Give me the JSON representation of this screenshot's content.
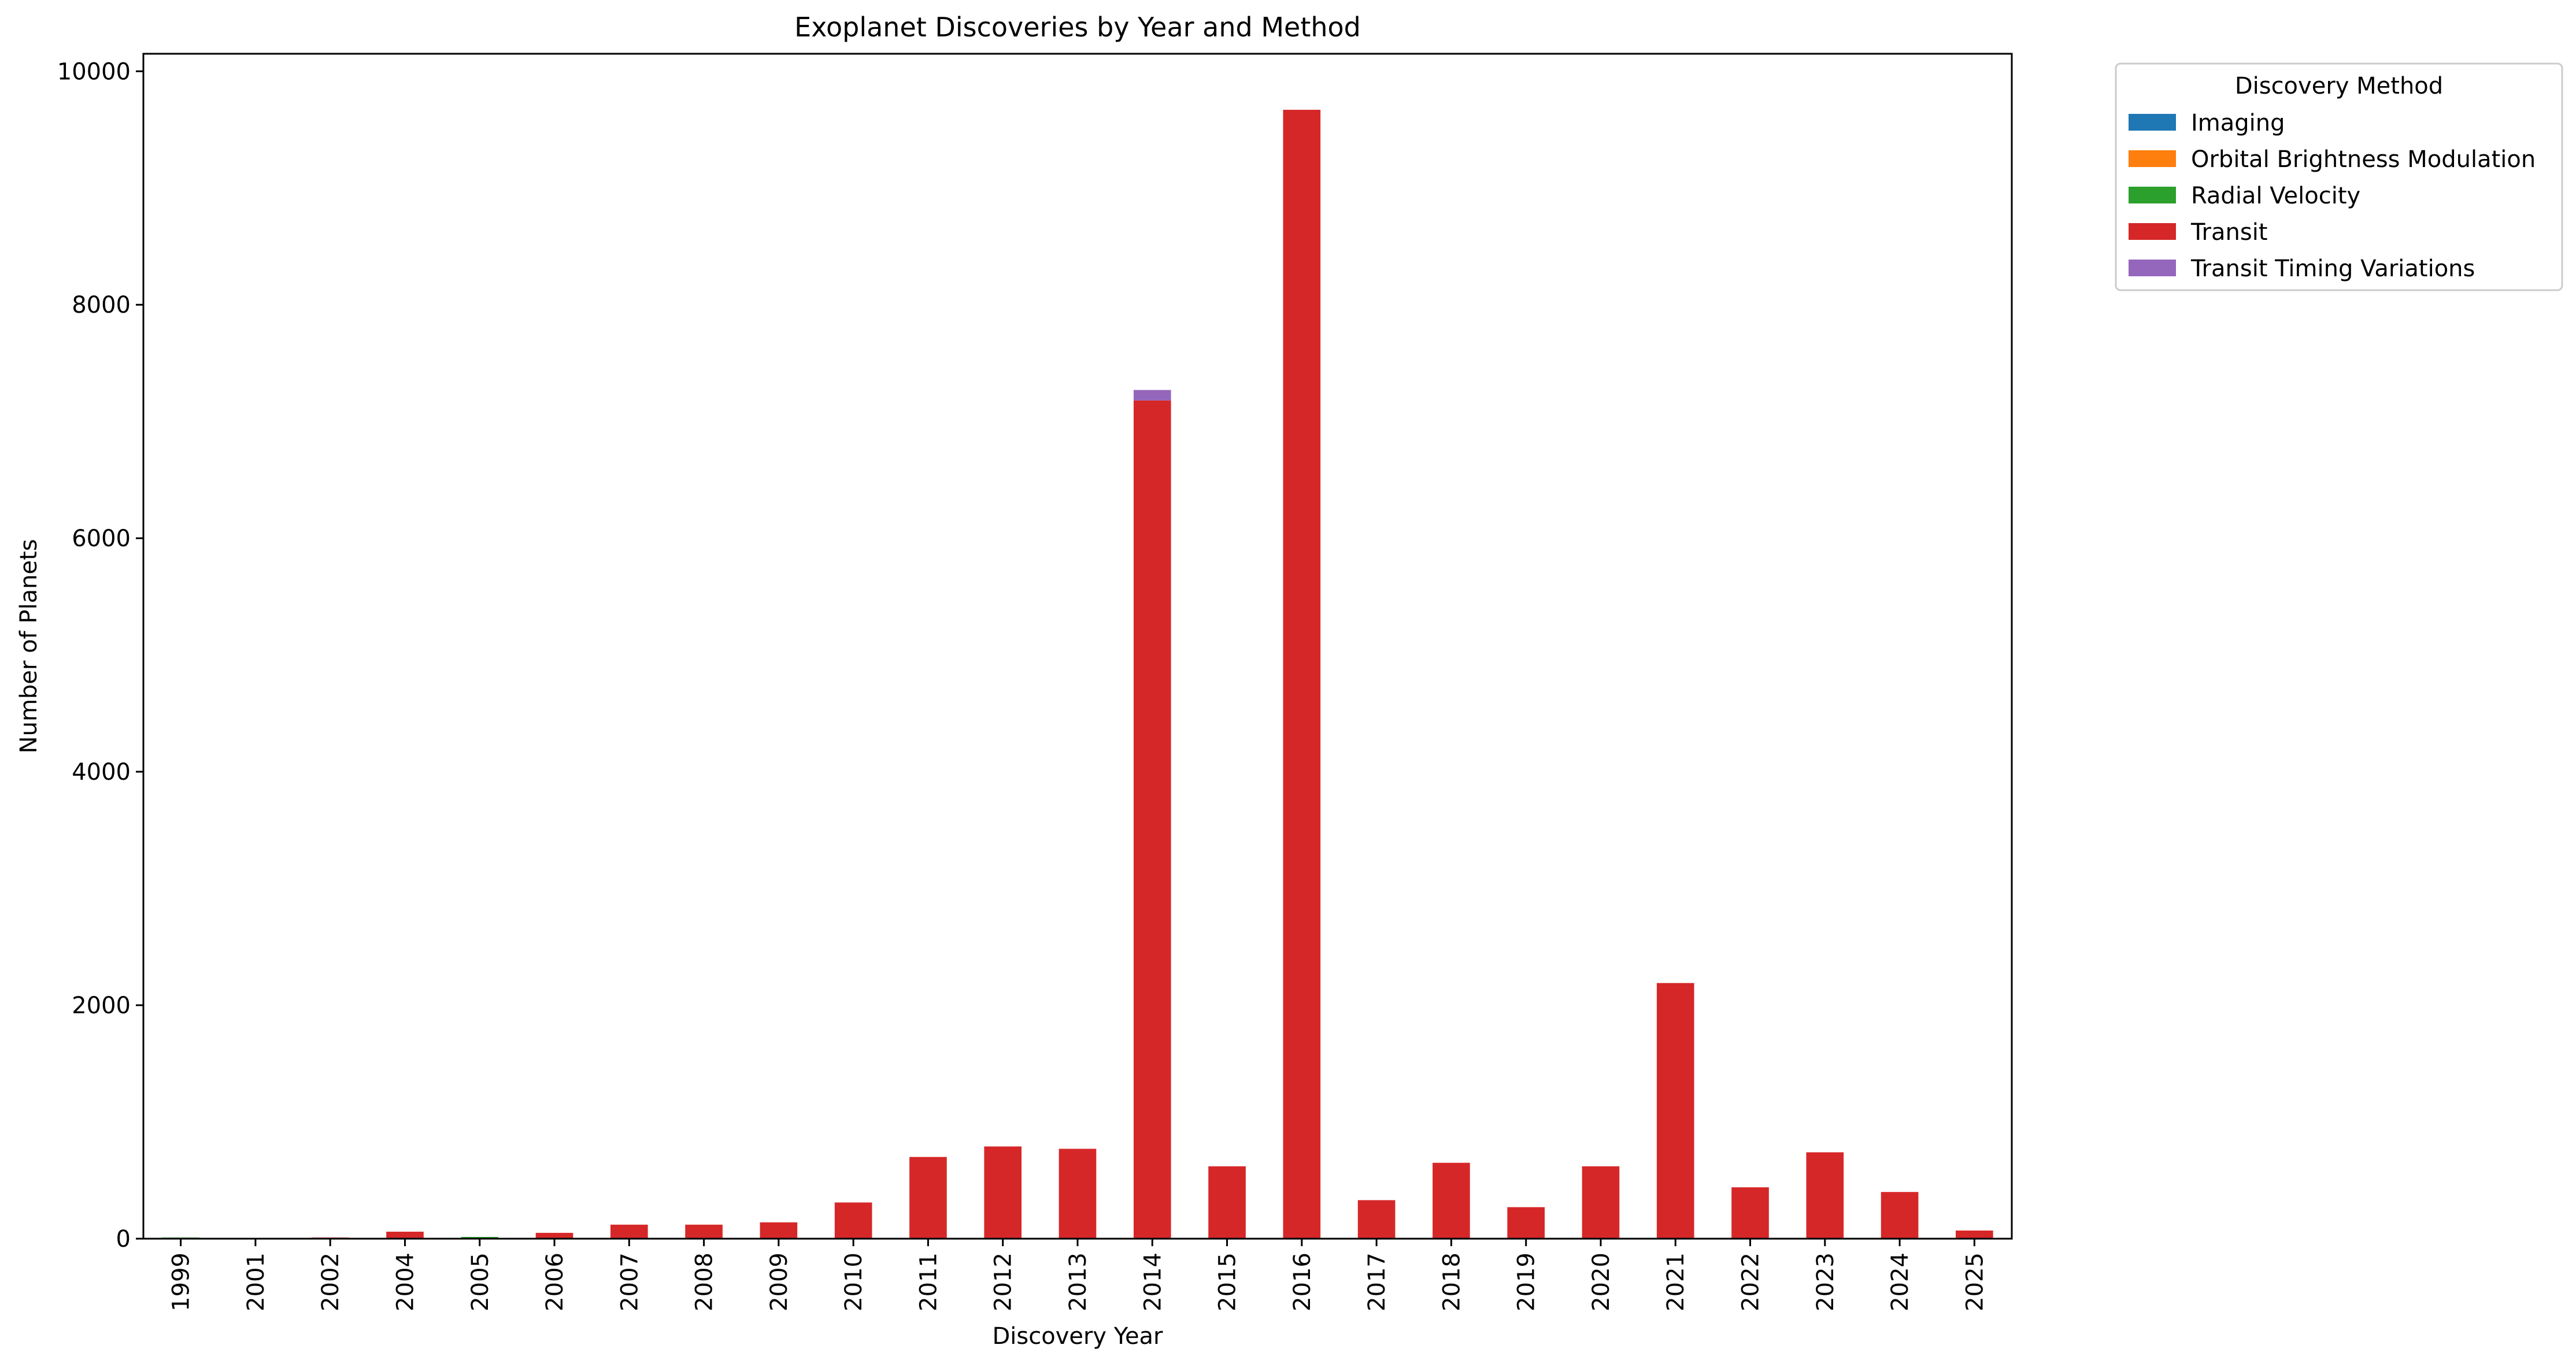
{
  "chart_data": {
    "type": "bar",
    "stacked": true,
    "title": "Exoplanet Discoveries by Year and Method",
    "xlabel": "Discovery Year",
    "ylabel": "Number of Planets",
    "ylim": [
      0,
      10150
    ],
    "yticks": [
      0,
      2000,
      4000,
      6000,
      8000,
      10000
    ],
    "grid": false,
    "legend_title": "Discovery Method",
    "legend_position": "outside-top-right",
    "categories": [
      "1999",
      "2001",
      "2002",
      "2004",
      "2005",
      "2006",
      "2007",
      "2008",
      "2009",
      "2010",
      "2011",
      "2012",
      "2013",
      "2014",
      "2015",
      "2016",
      "2017",
      "2018",
      "2019",
      "2020",
      "2021",
      "2022",
      "2023",
      "2024",
      "2025"
    ],
    "series": [
      {
        "name": "Imaging",
        "color": "#1f77b4",
        "values": [
          0,
          0,
          0,
          0,
          0,
          0,
          0,
          0,
          0,
          0,
          0,
          0,
          0,
          0,
          0,
          0,
          0,
          0,
          0,
          0,
          0,
          0,
          0,
          0,
          0
        ]
      },
      {
        "name": "Orbital Brightness Modulation",
        "color": "#ff7f0e",
        "values": [
          0,
          0,
          0,
          0,
          0,
          0,
          0,
          0,
          0,
          0,
          0,
          0,
          0,
          0,
          0,
          0,
          0,
          0,
          0,
          0,
          0,
          0,
          0,
          0,
          0
        ]
      },
      {
        "name": "Radial Velocity",
        "color": "#2ca02c",
        "values": [
          10,
          0,
          0,
          0,
          15,
          0,
          0,
          0,
          0,
          0,
          0,
          0,
          0,
          0,
          0,
          0,
          0,
          0,
          0,
          0,
          0,
          0,
          0,
          0,
          0
        ]
      },
      {
        "name": "Transit",
        "color": "#d62728",
        "values": [
          0,
          5,
          10,
          60,
          0,
          50,
          120,
          120,
          140,
          310,
          700,
          790,
          770,
          7180,
          620,
          9670,
          330,
          650,
          270,
          620,
          2190,
          440,
          740,
          400,
          70
        ]
      },
      {
        "name": "Transit Timing Variations",
        "color": "#9467bd",
        "values": [
          0,
          0,
          0,
          0,
          0,
          0,
          0,
          0,
          0,
          0,
          0,
          0,
          0,
          90,
          0,
          0,
          0,
          0,
          0,
          0,
          0,
          0,
          0,
          0,
          0
        ]
      }
    ]
  }
}
